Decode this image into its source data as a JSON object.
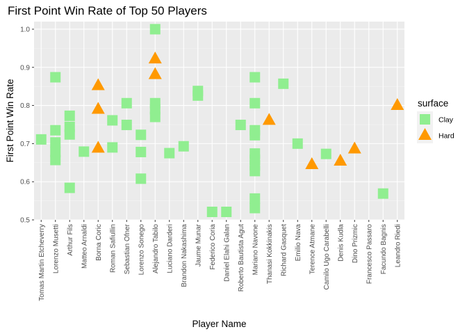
{
  "chart_data": {
    "type": "scatter",
    "title": "First Point Win Rate of Top 50 Players",
    "xlabel": "Player Name",
    "ylabel": "First Point Win Rate",
    "ylim": [
      0.5,
      1.02
    ],
    "y_ticks": [
      "0.5",
      "0.6",
      "0.7",
      "0.8",
      "0.9",
      "1.0"
    ],
    "grid": true,
    "legend_position": "right",
    "legend_title": "surface",
    "categories": [
      "Tomas Martin Etcheverry",
      "Lorenzo Musetti",
      "Arthur Fils",
      "Matteo Arnaldi",
      "Borna Coric",
      "Roman Safiullin",
      "Sebastian Ofner",
      "Lorenzo Sonego",
      "Alejandro Tabilo",
      "Luciano Darderi",
      "Brandon Nakashima",
      "Jaume Munar",
      "Federico Coria",
      "Daniel Elahi Galan",
      "Roberto Bautista Agut",
      "Mariano Navone",
      "Thanasi Kokkinakis",
      "Richard Gasquet",
      "Emilio Nava",
      "Terence Atmane",
      "Camilo Ugo Carabelli",
      "Denis Kudla",
      "Dino Prizmic",
      "Francesco Passaro",
      "Facundo Bagnis",
      "Leandro Riedi"
    ],
    "series": [
      {
        "name": "Clay",
        "color": "#90EE90",
        "shape": "square",
        "points": [
          [
            "Tomas Martin Etcheverry",
            0.711
          ],
          [
            "Lorenzo Musetti",
            0.874
          ],
          [
            "Lorenzo Musetti",
            0.735
          ],
          [
            "Lorenzo Musetti",
            0.703
          ],
          [
            "Lorenzo Musetti",
            0.678
          ],
          [
            "Lorenzo Musetti",
            0.657
          ],
          [
            "Arthur Fils",
            0.773
          ],
          [
            "Arthur Fils",
            0.744
          ],
          [
            "Arthur Fils",
            0.724
          ],
          [
            "Arthur Fils",
            0.584
          ],
          [
            "Matteo Arnaldi",
            0.679
          ],
          [
            "Roman Safiullin",
            0.761
          ],
          [
            "Roman Safiullin",
            0.69
          ],
          [
            "Sebastian Ofner",
            0.806
          ],
          [
            "Sebastian Ofner",
            0.749
          ],
          [
            "Lorenzo Sonego",
            0.723
          ],
          [
            "Lorenzo Sonego",
            0.678
          ],
          [
            "Lorenzo Sonego",
            0.608
          ],
          [
            "Alejandro Tabilo",
            1.0
          ],
          [
            "Alejandro Tabilo",
            0.806
          ],
          [
            "Alejandro Tabilo",
            0.79
          ],
          [
            "Alejandro Tabilo",
            0.77
          ],
          [
            "Luciano Darderi",
            0.675
          ],
          [
            "Brandon Nakashima",
            0.693
          ],
          [
            "Jaume Munar",
            0.838
          ],
          [
            "Jaume Munar",
            0.826
          ],
          [
            "Federico Coria",
            0.521
          ],
          [
            "Daniel Elahi Galan",
            0.521
          ],
          [
            "Roberto Bautista Agut",
            0.749
          ],
          [
            "Mariano Navone",
            0.874
          ],
          [
            "Mariano Navone",
            0.806
          ],
          [
            "Mariano Navone",
            0.735
          ],
          [
            "Mariano Navone",
            0.722
          ],
          [
            "Mariano Navone",
            0.674
          ],
          [
            "Mariano Navone",
            0.658
          ],
          [
            "Mariano Navone",
            0.643
          ],
          [
            "Mariano Navone",
            0.628
          ],
          [
            "Mariano Navone",
            0.556
          ],
          [
            "Mariano Navone",
            0.531
          ],
          [
            "Richard Gasquet",
            0.857
          ],
          [
            "Emilio Nava",
            0.7
          ],
          [
            "Camilo Ugo Carabelli",
            0.673
          ],
          [
            "Facundo Bagnis",
            0.569
          ]
        ]
      },
      {
        "name": "Hard",
        "color": "#FF9900",
        "shape": "triangle",
        "points": [
          [
            "Borna Coric",
            0.852
          ],
          [
            "Borna Coric",
            0.79
          ],
          [
            "Borna Coric",
            0.688
          ],
          [
            "Alejandro Tabilo",
            0.922
          ],
          [
            "Alejandro Tabilo",
            0.881
          ],
          [
            "Thanasi Kokkinakis",
            0.761
          ],
          [
            "Terence Atmane",
            0.645
          ],
          [
            "Denis Kudla",
            0.654
          ],
          [
            "Dino Prizmic",
            0.686
          ],
          [
            "Leandro Riedi",
            0.8
          ]
        ]
      }
    ]
  }
}
